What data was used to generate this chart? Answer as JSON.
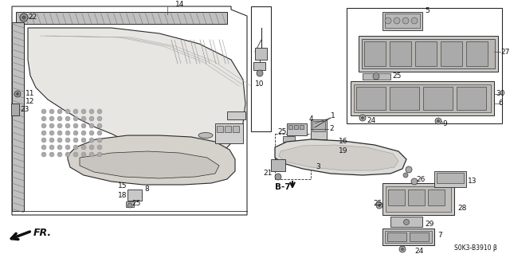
{
  "background_color": "#ffffff",
  "diagram_code": "S0K3-B3910",
  "line_color": "#2a2a2a",
  "gray_fill": "#d8d8d8",
  "dark_gray": "#888888",
  "light_gray": "#eeeeee",
  "mid_gray": "#bbbbbb"
}
